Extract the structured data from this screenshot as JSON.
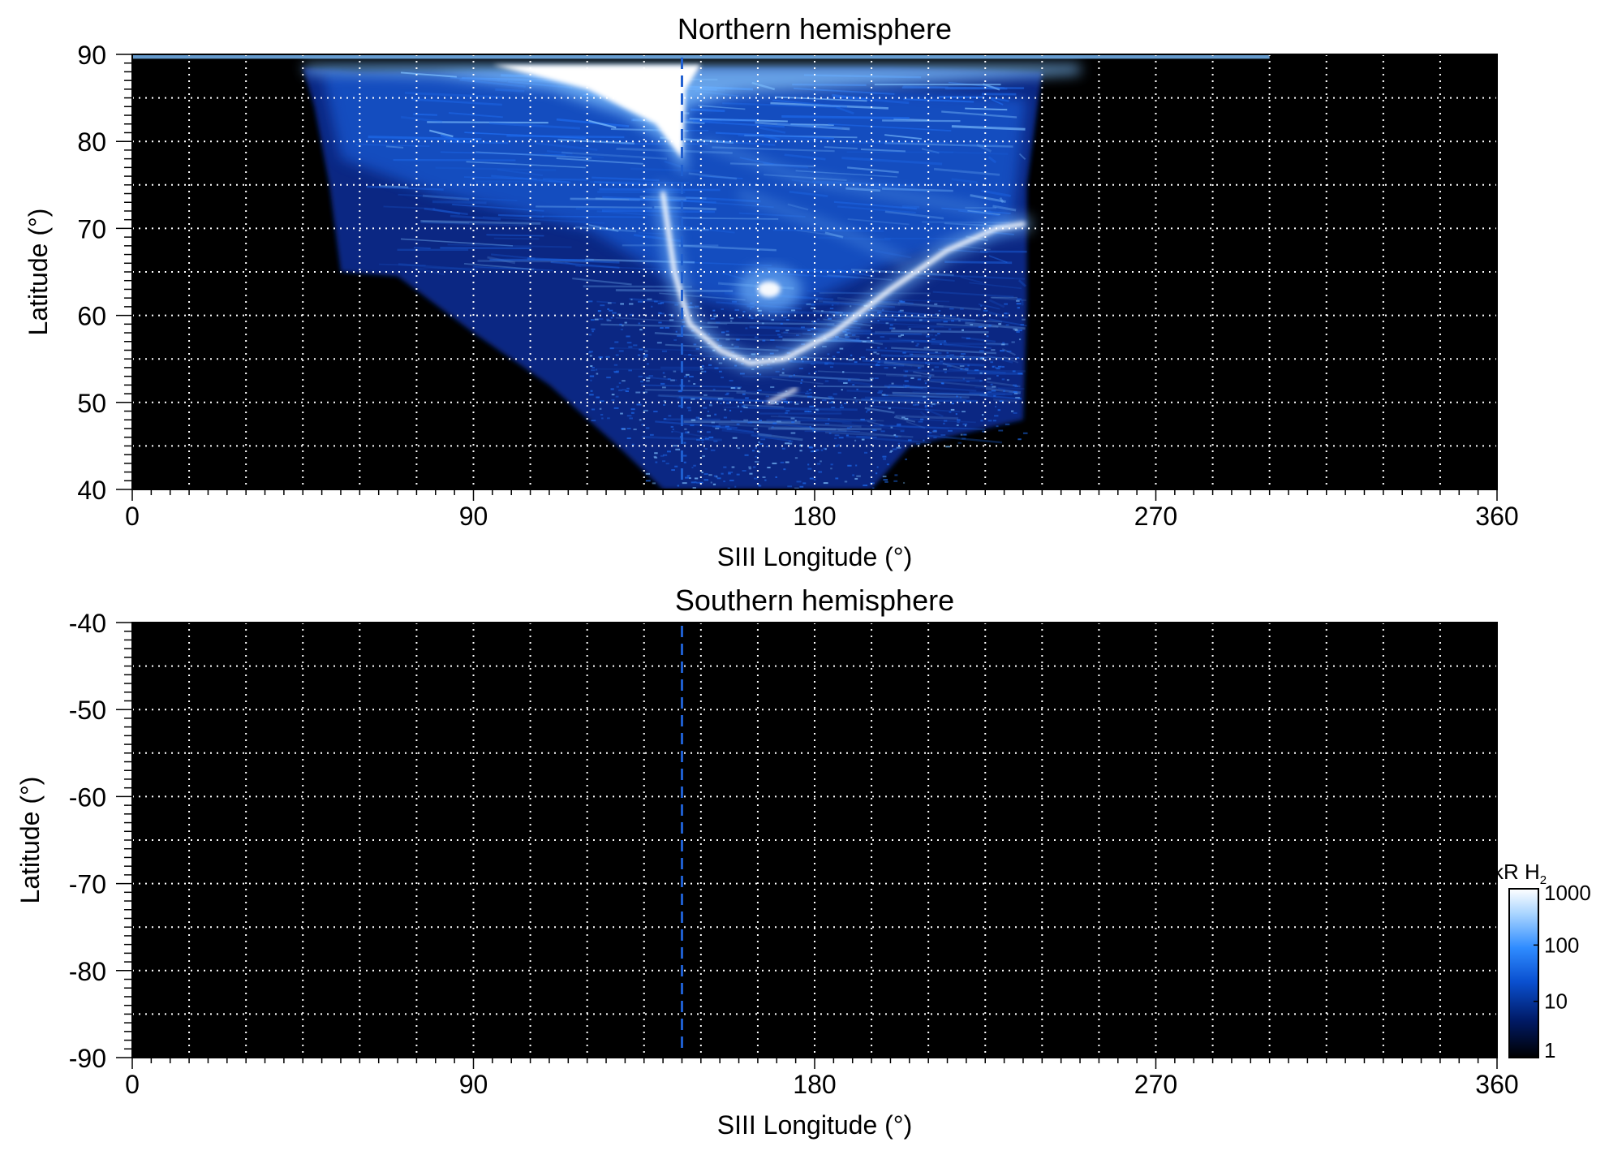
{
  "chart_data": [
    {
      "type": "heatmap",
      "title": "Northern hemisphere",
      "xlabel": "SIII Longitude (°)",
      "ylabel": "Latitude (°)",
      "xlim": [
        0,
        360
      ],
      "ylim": [
        40,
        90
      ],
      "x_ticks": [
        "0",
        "90",
        "180",
        "270",
        "360"
      ],
      "y_ticks": [
        "90",
        "80",
        "70",
        "60",
        "50",
        "40"
      ],
      "grid": "dotted white, every 15° longitude and 5° latitude",
      "background": "black",
      "reference_longitude": 145,
      "emission": {
        "coverage_longitude": [
          45,
          240
        ],
        "polar_cap_bright_region": {
          "lon": [
            100,
            145
          ],
          "lat": [
            76,
            90
          ],
          "level_kR": 1000
        },
        "main_oval": [
          {
            "lon": 140,
            "lat": 74
          },
          {
            "lon": 143,
            "lat": 65
          },
          {
            "lon": 147,
            "lat": 59
          },
          {
            "lon": 155,
            "lat": 56
          },
          {
            "lon": 163,
            "lat": 54.5
          },
          {
            "lon": 172,
            "lat": 55
          },
          {
            "lon": 185,
            "lat": 58
          },
          {
            "lon": 200,
            "lat": 63
          },
          {
            "lon": 215,
            "lat": 67.5
          },
          {
            "lon": 228,
            "lat": 70
          },
          {
            "lon": 235,
            "lat": 70.5
          }
        ],
        "bright_spot": {
          "lon": 168,
          "lat": 63,
          "level_kR": 800
        },
        "secondary_arc": [
          {
            "lon": 168,
            "lat": 50
          },
          {
            "lon": 175,
            "lat": 51.5
          }
        ]
      }
    },
    {
      "type": "heatmap",
      "title": "Southern hemisphere",
      "xlabel": "SIII Longitude (°)",
      "ylabel": "Latitude (°)",
      "xlim": [
        0,
        360
      ],
      "ylim": [
        -90,
        -40
      ],
      "x_ticks": [
        "0",
        "90",
        "180",
        "270",
        "360"
      ],
      "y_ticks": [
        "-40",
        "-50",
        "-60",
        "-70",
        "-80",
        "-90"
      ],
      "grid": "dotted white, every 15° longitude and 5° latitude",
      "background": "black",
      "reference_longitude": 145,
      "emission": null
    }
  ],
  "colorbar": {
    "label": "kR H",
    "label_subscript": "2",
    "scale": "log",
    "range_kR": [
      1,
      1000
    ],
    "ticks": [
      "1000",
      "100",
      "10",
      "1"
    ],
    "colors": [
      "#000000",
      "#001a66",
      "#0a50d0",
      "#2f8cff",
      "#a8d4ff",
      "#ffffff"
    ]
  },
  "colors": {
    "background": "#000000",
    "grid": "#ffffff",
    "reference_line": "#1f5fd0",
    "emission_dim": "#0b2f9a",
    "emission_mid": "#1e6cf0",
    "emission_bright": "#7ec0ff",
    "emission_max": "#ffffff"
  }
}
